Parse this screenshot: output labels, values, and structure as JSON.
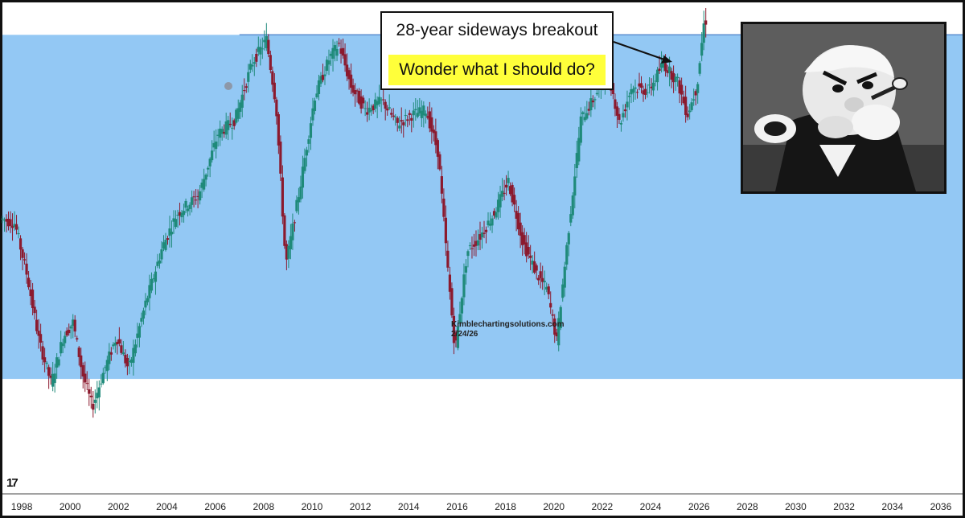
{
  "annotation": {
    "line1": "28-year sideways breakout",
    "line2": "Wonder what I should do?"
  },
  "watermark": {
    "site": "Kimblechartingsolutions.com",
    "date": "2/24/26"
  },
  "logo_text": "17",
  "image": {
    "icon": "popeye-cartoon-icon",
    "description_hidden": true
  },
  "colors": {
    "range_band": "#93c8f4",
    "up_candle": "#1f8a7a",
    "down_candle": "#8b1a2e",
    "resistance_line": "#5b8fd1"
  },
  "chart_data": {
    "type": "candlestick",
    "title": "",
    "xlabel": "",
    "ylabel": "",
    "x_tick_labels": [
      "1998",
      "2000",
      "2002",
      "2004",
      "2006",
      "2008",
      "2010",
      "2012",
      "2014",
      "2016",
      "2018",
      "2020",
      "2022",
      "2024",
      "2026",
      "2028",
      "2030",
      "2032",
      "2034",
      "2036"
    ],
    "x_range": [
      1997.2,
      2036.9
    ],
    "y_range": [
      0,
      100
    ],
    "range_band": {
      "low": 22,
      "high": 95
    },
    "series_path": [
      [
        1997.2,
        56
      ],
      [
        1997.8,
        55
      ],
      [
        1998.3,
        44
      ],
      [
        1998.8,
        30
      ],
      [
        1999.3,
        21
      ],
      [
        1999.8,
        31
      ],
      [
        2000.2,
        34
      ],
      [
        2000.6,
        23
      ],
      [
        2001.0,
        16
      ],
      [
        2001.5,
        24
      ],
      [
        2002.0,
        31
      ],
      [
        2002.5,
        24
      ],
      [
        2003.2,
        38
      ],
      [
        2003.9,
        50
      ],
      [
        2004.5,
        57
      ],
      [
        2005.4,
        61
      ],
      [
        2006.2,
        74
      ],
      [
        2006.9,
        77
      ],
      [
        2007.6,
        89
      ],
      [
        2008.2,
        94
      ],
      [
        2008.6,
        80
      ],
      [
        2009.0,
        46
      ],
      [
        2009.6,
        63
      ],
      [
        2010.2,
        82
      ],
      [
        2010.8,
        90
      ],
      [
        2011.2,
        93
      ],
      [
        2011.7,
        84
      ],
      [
        2012.3,
        79
      ],
      [
        2013.0,
        81
      ],
      [
        2013.6,
        76
      ],
      [
        2014.2,
        78
      ],
      [
        2014.8,
        79
      ],
      [
        2015.3,
        70
      ],
      [
        2015.7,
        45
      ],
      [
        2016.0,
        28
      ],
      [
        2016.5,
        49
      ],
      [
        2017.0,
        52
      ],
      [
        2017.6,
        57
      ],
      [
        2018.2,
        64
      ],
      [
        2018.8,
        51
      ],
      [
        2019.4,
        44
      ],
      [
        2019.8,
        41
      ],
      [
        2020.2,
        30
      ],
      [
        2020.7,
        54
      ],
      [
        2021.2,
        77
      ],
      [
        2021.8,
        82
      ],
      [
        2022.3,
        88
      ],
      [
        2022.8,
        76
      ],
      [
        2023.3,
        84
      ],
      [
        2024.0,
        83
      ],
      [
        2024.6,
        89
      ],
      [
        2025.2,
        85
      ],
      [
        2025.6,
        78
      ],
      [
        2026.0,
        84
      ],
      [
        2026.3,
        98
      ]
    ]
  }
}
